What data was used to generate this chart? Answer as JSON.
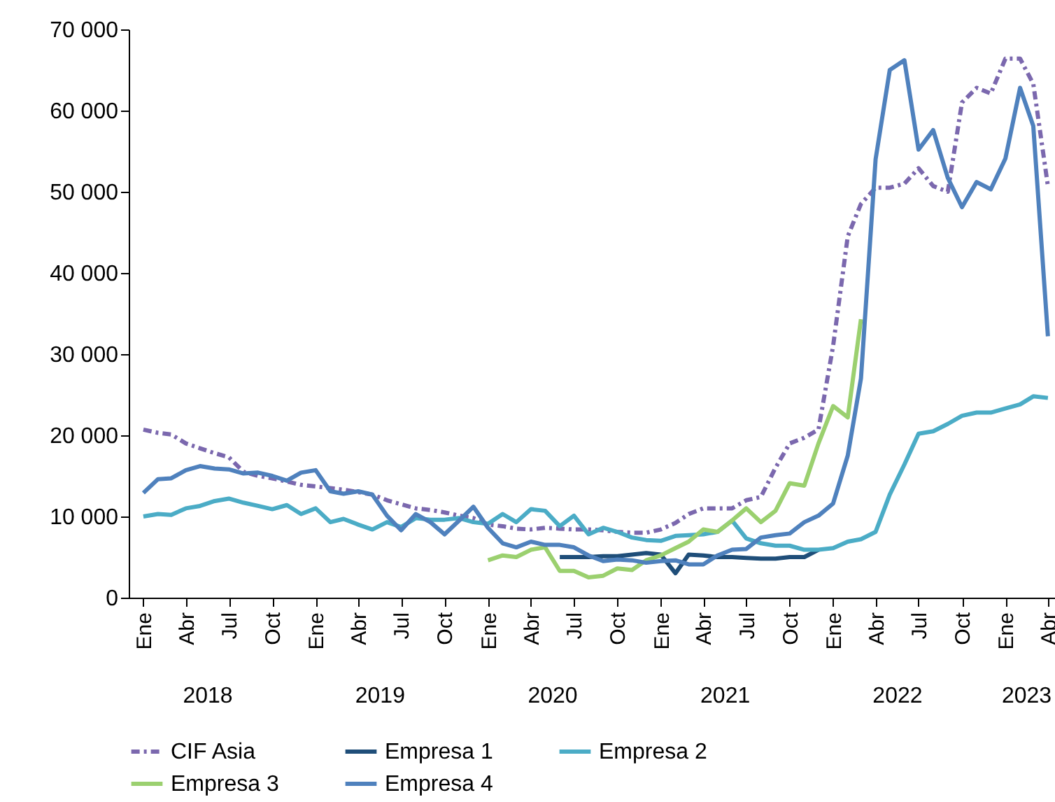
{
  "chart_data": {
    "type": "line",
    "x": [
      "2018-01",
      "2018-02",
      "2018-03",
      "2018-04",
      "2018-05",
      "2018-06",
      "2018-07",
      "2018-08",
      "2018-09",
      "2018-10",
      "2018-11",
      "2018-12",
      "2019-01",
      "2019-02",
      "2019-03",
      "2019-04",
      "2019-05",
      "2019-06",
      "2019-07",
      "2019-08",
      "2019-09",
      "2019-10",
      "2019-11",
      "2019-12",
      "2020-01",
      "2020-02",
      "2020-03",
      "2020-04",
      "2020-05",
      "2020-06",
      "2020-07",
      "2020-08",
      "2020-09",
      "2020-10",
      "2020-11",
      "2020-12",
      "2021-01",
      "2021-02",
      "2021-03",
      "2021-04",
      "2021-05",
      "2021-06",
      "2021-07",
      "2021-08",
      "2021-09",
      "2021-10",
      "2021-11",
      "2021-12",
      "2022-01",
      "2022-02",
      "2022-03",
      "2022-04",
      "2022-05",
      "2022-06",
      "2022-07",
      "2022-08",
      "2022-09",
      "2022-10",
      "2022-11",
      "2022-12",
      "2023-01",
      "2023-02",
      "2023-03",
      "2023-04"
    ],
    "series": [
      {
        "name": "CIF Asia",
        "color": "#7b68ae",
        "line_style": "dashed",
        "values": [
          20700,
          20300,
          20100,
          19000,
          18400,
          17800,
          17300,
          15500,
          15000,
          14700,
          14300,
          13900,
          13700,
          13500,
          13300,
          13000,
          12700,
          12000,
          11500,
          11000,
          10800,
          10500,
          10100,
          9800,
          9000,
          8800,
          8500,
          8400,
          8600,
          8500,
          8400,
          8400,
          8300,
          8100,
          8000,
          8000,
          8400,
          9200,
          10300,
          11000,
          11000,
          11000,
          12000,
          12400,
          16000,
          19000,
          19700,
          20700,
          31000,
          44500,
          48500,
          50500,
          50500,
          51000,
          52900,
          50700,
          50000,
          61000,
          62800,
          62100,
          66400,
          66400,
          63300,
          50700
        ]
      },
      {
        "name": "Empresa 1",
        "color": "#1f4e79",
        "line_style": "solid",
        "values": [
          null,
          null,
          null,
          null,
          null,
          null,
          null,
          null,
          null,
          null,
          null,
          null,
          null,
          null,
          null,
          null,
          null,
          null,
          null,
          null,
          null,
          null,
          null,
          null,
          null,
          null,
          null,
          null,
          null,
          5000,
          5000,
          5000,
          5100,
          5100,
          5300,
          5500,
          5300,
          3000,
          5300,
          5200,
          5000,
          5000,
          4900,
          4800,
          4800,
          5000,
          5000,
          5900,
          null,
          null,
          null,
          null,
          null,
          null,
          null,
          null,
          null,
          null,
          null,
          null,
          null,
          null,
          null,
          null
        ]
      },
      {
        "name": "Empresa 2",
        "color": "#4bacc6",
        "line_style": "solid",
        "values": [
          10000,
          10300,
          10200,
          11000,
          11300,
          11900,
          12200,
          11700,
          11300,
          10900,
          11400,
          10300,
          11000,
          9300,
          9700,
          9000,
          8400,
          9300,
          8700,
          9800,
          9600,
          9600,
          9800,
          9300,
          9100,
          10300,
          9300,
          10900,
          10700,
          8800,
          10100,
          7800,
          8600,
          8100,
          7400,
          7100,
          7000,
          7600,
          7700,
          7800,
          8100,
          9500,
          7300,
          6700,
          6400,
          6400,
          5900,
          5900,
          6100,
          6900,
          7200,
          8100,
          12700,
          16400,
          20200,
          20500,
          21400,
          22400,
          22800,
          22800,
          23300,
          23800,
          24800,
          24600
        ]
      },
      {
        "name": "Empresa 3",
        "color": "#9bd06f",
        "line_style": "solid",
        "values": [
          null,
          null,
          null,
          null,
          null,
          null,
          null,
          null,
          null,
          null,
          null,
          null,
          null,
          null,
          null,
          null,
          null,
          null,
          null,
          null,
          null,
          null,
          null,
          null,
          4600,
          5200,
          5000,
          5900,
          6200,
          3300,
          3300,
          2500,
          2700,
          3600,
          3400,
          4600,
          5200,
          6100,
          6900,
          8400,
          8100,
          9500,
          11000,
          9300,
          10700,
          14100,
          13800,
          19000,
          23600,
          22200,
          34300,
          null,
          null,
          null,
          null,
          null,
          null,
          null,
          null,
          null,
          null,
          null,
          null,
          null
        ]
      },
      {
        "name": "Empresa 4",
        "color": "#4f81bd",
        "line_style": "solid",
        "values": [
          12900,
          14600,
          14700,
          15700,
          16200,
          15900,
          15800,
          15300,
          15400,
          15000,
          14400,
          15400,
          15700,
          13100,
          12800,
          13100,
          12700,
          10100,
          8300,
          10300,
          9300,
          7800,
          9500,
          11200,
          8600,
          6700,
          6200,
          6900,
          6500,
          6500,
          6200,
          5200,
          4500,
          4700,
          4600,
          4300,
          4500,
          4600,
          4100,
          4100,
          5200,
          5900,
          6000,
          7400,
          7700,
          7900,
          9300,
          10100,
          11600,
          17500,
          27000,
          54000,
          65000,
          66200,
          55200,
          57600,
          51700,
          48100,
          51200,
          50300,
          54100,
          62800,
          58100,
          32200
        ]
      }
    ],
    "xlim": [
      "2017-12-01",
      "2023-04-16"
    ],
    "xticks": [
      {
        "value": "2018-01",
        "label": "Ene"
      },
      {
        "value": "2018-04",
        "label": "Abr"
      },
      {
        "value": "2018-07",
        "label": "Jul"
      },
      {
        "value": "2018-10",
        "label": "Oct"
      },
      {
        "value": "2019-01",
        "label": "Ene"
      },
      {
        "value": "2019-04",
        "label": "Abr"
      },
      {
        "value": "2019-07",
        "label": "Jul"
      },
      {
        "value": "2019-10",
        "label": "Oct"
      },
      {
        "value": "2020-01",
        "label": "Ene"
      },
      {
        "value": "2020-04",
        "label": "Abr"
      },
      {
        "value": "2020-07",
        "label": "Jul"
      },
      {
        "value": "2020-10",
        "label": "Oct"
      },
      {
        "value": "2021-01",
        "label": "Ene"
      },
      {
        "value": "2021-04",
        "label": "Abr"
      },
      {
        "value": "2021-07",
        "label": "Jul"
      },
      {
        "value": "2021-10",
        "label": "Oct"
      },
      {
        "value": "2022-01",
        "label": "Ene"
      },
      {
        "value": "2022-04",
        "label": "Abr"
      },
      {
        "value": "2022-07",
        "label": "Jul"
      },
      {
        "value": "2022-10",
        "label": "Oct"
      },
      {
        "value": "2023-01",
        "label": "Ene"
      },
      {
        "value": "2023-04",
        "label": "Abr"
      }
    ],
    "annotations": [
      "2018",
      "2019",
      "2020",
      "2021",
      "2022",
      "2023"
    ],
    "ylim": [
      0,
      70000
    ],
    "yticks": [
      {
        "value": 0,
        "label": "0"
      },
      {
        "value": 10000,
        "label": "10 000"
      },
      {
        "value": 20000,
        "label": "20 000"
      },
      {
        "value": 30000,
        "label": "30 000"
      },
      {
        "value": 40000,
        "label": "40 000"
      },
      {
        "value": 50000,
        "label": "50 000"
      },
      {
        "value": 60000,
        "label": "60 000"
      },
      {
        "value": 70000,
        "label": "70 000"
      }
    ],
    "grid": false,
    "legend": "bottom"
  }
}
